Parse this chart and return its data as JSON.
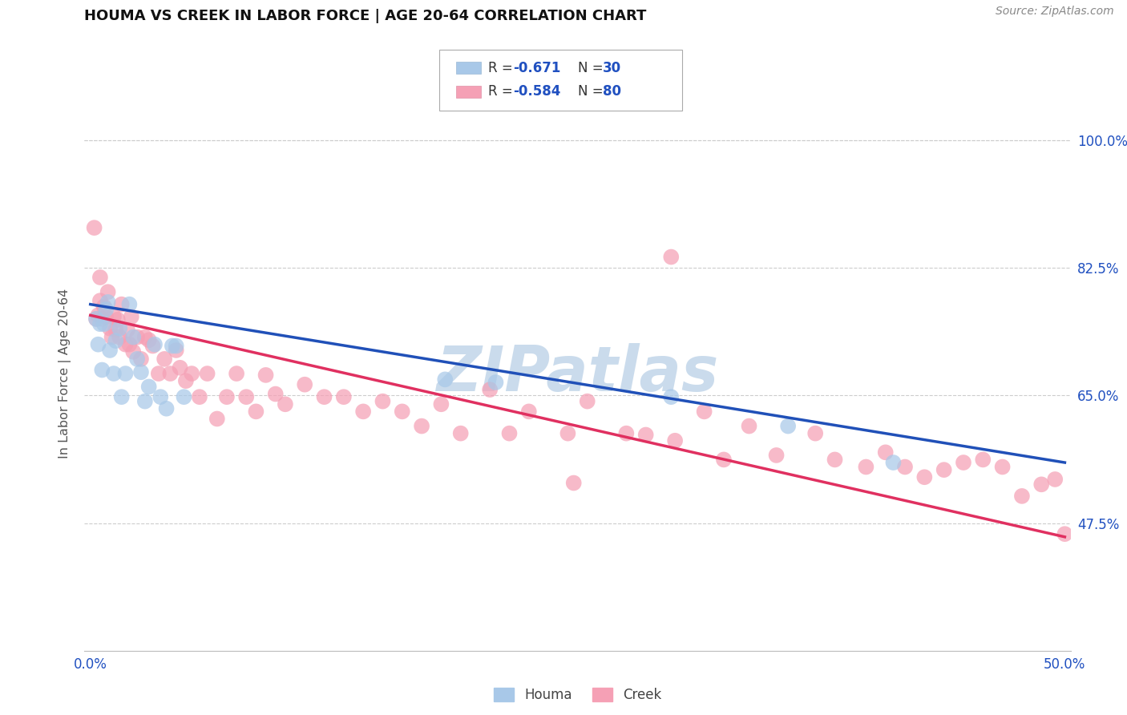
{
  "title": "HOUMA VS CREEK IN LABOR FORCE | AGE 20-64 CORRELATION CHART",
  "source_text": "Source: ZipAtlas.com",
  "ylabel": "In Labor Force | Age 20-64",
  "xlim": [
    -0.003,
    0.503
  ],
  "ylim": [
    0.3,
    1.06
  ],
  "xtick_positions": [
    0.0,
    0.1,
    0.2,
    0.3,
    0.4,
    0.5
  ],
  "xtick_labels": [
    "0.0%",
    "",
    "",
    "",
    "",
    "50.0%"
  ],
  "ytick_vals": [
    1.0,
    0.825,
    0.65,
    0.475
  ],
  "ytick_labels": [
    "100.0%",
    "82.5%",
    "65.0%",
    "47.5%"
  ],
  "houma_R": -0.671,
  "houma_N": 30,
  "creek_R": -0.584,
  "creek_N": 80,
  "houma_dot_color": "#a8c8e8",
  "creek_dot_color": "#f5a0b5",
  "houma_line_color": "#2050b8",
  "creek_line_color": "#e03060",
  "r_color": "#2050c0",
  "bg_color": "#ffffff",
  "grid_color": "#cccccc",
  "watermark_color": "#c5d8ea",
  "houma_x": [
    0.003,
    0.004,
    0.005,
    0.006,
    0.007,
    0.008,
    0.009,
    0.01,
    0.012,
    0.013,
    0.015,
    0.016,
    0.018,
    0.02,
    0.022,
    0.024,
    0.026,
    0.028,
    0.03,
    0.033,
    0.036,
    0.039,
    0.042,
    0.044,
    0.048,
    0.182,
    0.208,
    0.298,
    0.358,
    0.412
  ],
  "houma_y": [
    0.755,
    0.72,
    0.748,
    0.685,
    0.748,
    0.768,
    0.778,
    0.712,
    0.68,
    0.725,
    0.742,
    0.648,
    0.68,
    0.775,
    0.73,
    0.7,
    0.682,
    0.642,
    0.662,
    0.72,
    0.648,
    0.632,
    0.718,
    0.718,
    0.648,
    0.672,
    0.668,
    0.648,
    0.608,
    0.558
  ],
  "creek_x": [
    0.002,
    0.003,
    0.004,
    0.005,
    0.005,
    0.006,
    0.007,
    0.008,
    0.009,
    0.01,
    0.011,
    0.012,
    0.013,
    0.014,
    0.015,
    0.016,
    0.018,
    0.019,
    0.02,
    0.021,
    0.022,
    0.024,
    0.026,
    0.028,
    0.03,
    0.032,
    0.035,
    0.038,
    0.041,
    0.044,
    0.046,
    0.049,
    0.052,
    0.056,
    0.06,
    0.065,
    0.07,
    0.075,
    0.08,
    0.085,
    0.09,
    0.095,
    0.1,
    0.11,
    0.12,
    0.13,
    0.14,
    0.15,
    0.16,
    0.17,
    0.18,
    0.19,
    0.205,
    0.215,
    0.225,
    0.245,
    0.255,
    0.275,
    0.285,
    0.3,
    0.315,
    0.325,
    0.338,
    0.352,
    0.372,
    0.382,
    0.398,
    0.408,
    0.418,
    0.428,
    0.438,
    0.448,
    0.458,
    0.468,
    0.478,
    0.488,
    0.495,
    0.5,
    0.248,
    0.298
  ],
  "creek_y": [
    0.88,
    0.755,
    0.76,
    0.78,
    0.812,
    0.755,
    0.772,
    0.758,
    0.792,
    0.742,
    0.73,
    0.758,
    0.74,
    0.754,
    0.73,
    0.775,
    0.72,
    0.74,
    0.72,
    0.758,
    0.71,
    0.73,
    0.7,
    0.73,
    0.726,
    0.718,
    0.68,
    0.7,
    0.68,
    0.712,
    0.688,
    0.67,
    0.68,
    0.648,
    0.68,
    0.618,
    0.648,
    0.68,
    0.648,
    0.628,
    0.678,
    0.652,
    0.638,
    0.665,
    0.648,
    0.648,
    0.628,
    0.642,
    0.628,
    0.608,
    0.638,
    0.598,
    0.658,
    0.598,
    0.628,
    0.598,
    0.642,
    0.598,
    0.596,
    0.588,
    0.628,
    0.562,
    0.608,
    0.568,
    0.598,
    0.562,
    0.552,
    0.572,
    0.552,
    0.538,
    0.548,
    0.558,
    0.562,
    0.552,
    0.512,
    0.528,
    0.535,
    0.46,
    0.53,
    0.84
  ],
  "houma_trendline_x": [
    0.0,
    0.5
  ],
  "houma_trendline_y": [
    0.775,
    0.558
  ],
  "creek_trendline_x": [
    0.0,
    0.5
  ],
  "creek_trendline_y": [
    0.76,
    0.456
  ]
}
